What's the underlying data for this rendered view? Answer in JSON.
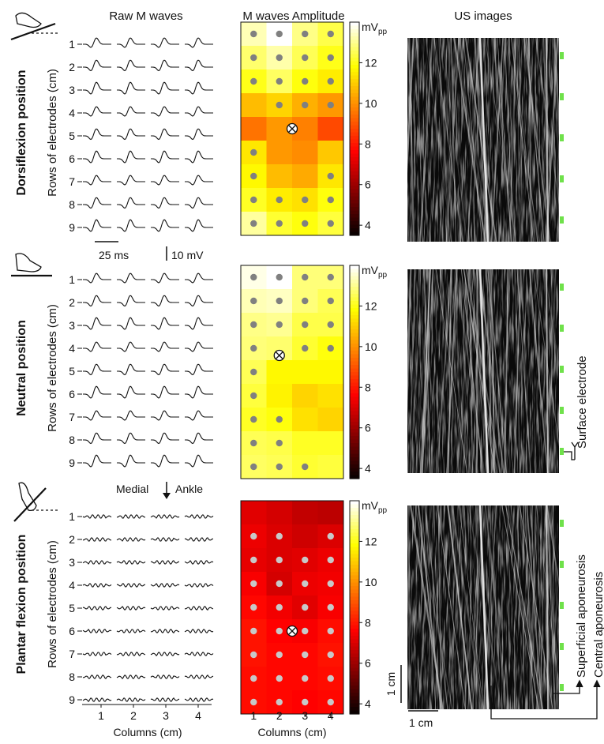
{
  "headers": {
    "raw": "Raw M waves",
    "amplitude": "M waves Amplitude",
    "us": "US images"
  },
  "panels": [
    {
      "position_label": "Dorsiflexion position",
      "rows_label": "Rows  of electrodes (cm)"
    },
    {
      "position_label": "Neutral position",
      "rows_label": "Rows  of electrodes (cm)"
    },
    {
      "position_label": "Plantar flexion position",
      "rows_label": "Rows  of electrodes (cm)"
    }
  ],
  "row_numbers": [
    "1",
    "2",
    "3",
    "4",
    "5",
    "6",
    "7",
    "8",
    "9"
  ],
  "column_numbers": [
    "1",
    "2",
    "3",
    "4"
  ],
  "columns_label": "Columns (cm)",
  "scalebars": {
    "time": "25 ms",
    "voltage": "10 mV",
    "us_vertical": "1 cm",
    "us_horizontal": "1 cm"
  },
  "orientation": {
    "medial": "Medial",
    "ankle": "Ankle"
  },
  "colorbar": {
    "unit_main": "mV",
    "unit_sub": "pp",
    "ticks": [
      "12",
      "10",
      "8",
      "6",
      "4"
    ],
    "range": [
      3.5,
      14
    ]
  },
  "annotations": {
    "surface": "Surface electrode",
    "superficial": "Superficial aponeurosis",
    "central": "Central aponeurosis"
  },
  "heatmap_values": [
    [
      [
        13.4,
        14.0,
        13.0,
        12.5
      ],
      [
        12.8,
        13.3,
        12.6,
        12.1
      ],
      [
        12.1,
        12.7,
        12.0,
        11.6
      ],
      [
        10.8,
        11.2,
        10.6,
        10.2
      ],
      [
        9.6,
        10.2,
        9.8,
        8.9
      ],
      [
        11.5,
        10.2,
        10.0,
        11.0
      ],
      [
        11.8,
        10.8,
        10.5,
        11.5
      ],
      [
        12.2,
        11.6,
        11.4,
        12.0
      ],
      [
        13.2,
        12.3,
        12.0,
        12.4
      ]
    ],
    [
      [
        13.8,
        14.0,
        12.9,
        12.9
      ],
      [
        13.4,
        13.5,
        12.9,
        12.6
      ],
      [
        13.0,
        13.1,
        12.5,
        12.5
      ],
      [
        12.9,
        12.8,
        12.3,
        12.0
      ],
      [
        12.6,
        11.8,
        11.8,
        11.8
      ],
      [
        12.4,
        11.7,
        11.2,
        11.4
      ],
      [
        12.2,
        12.0,
        11.4,
        11.2
      ],
      [
        12.6,
        12.5,
        12.2,
        12.2
      ],
      [
        12.7,
        12.6,
        12.3,
        12.4
      ]
    ],
    [
      [
        7.2,
        7.0,
        6.7,
        6.6
      ],
      [
        7.4,
        7.1,
        6.9,
        7.1
      ],
      [
        7.3,
        7.1,
        7.2,
        7.4
      ],
      [
        7.6,
        7.0,
        7.4,
        7.5
      ],
      [
        7.8,
        7.5,
        7.2,
        7.6
      ],
      [
        8.0,
        7.7,
        7.6,
        7.9
      ],
      [
        8.0,
        7.8,
        7.8,
        8.0
      ],
      [
        7.9,
        7.8,
        7.8,
        7.9
      ],
      [
        7.9,
        7.8,
        7.7,
        7.8
      ]
    ]
  ],
  "dot_masks": [
    [
      [
        1,
        1,
        1,
        1
      ],
      [
        1,
        1,
        1,
        1
      ],
      [
        1,
        1,
        1,
        1
      ],
      [
        0,
        1,
        1,
        1
      ],
      [
        0,
        0,
        0,
        0
      ],
      [
        1,
        0,
        0,
        0
      ],
      [
        1,
        0,
        0,
        1
      ],
      [
        1,
        1,
        1,
        1
      ],
      [
        1,
        1,
        1,
        1
      ]
    ],
    [
      [
        1,
        1,
        1,
        1
      ],
      [
        1,
        1,
        1,
        1
      ],
      [
        1,
        1,
        1,
        1
      ],
      [
        1,
        0,
        1,
        1
      ],
      [
        1,
        0,
        0,
        0
      ],
      [
        1,
        0,
        0,
        0
      ],
      [
        1,
        1,
        0,
        0
      ],
      [
        1,
        1,
        0,
        0
      ],
      [
        1,
        1,
        1,
        0
      ]
    ],
    [
      [
        0,
        0,
        0,
        0
      ],
      [
        1,
        1,
        0,
        1
      ],
      [
        1,
        1,
        1,
        1
      ],
      [
        1,
        1,
        1,
        1
      ],
      [
        1,
        1,
        1,
        1
      ],
      [
        1,
        1,
        1,
        1
      ],
      [
        1,
        1,
        1,
        1
      ],
      [
        1,
        1,
        1,
        1
      ],
      [
        1,
        1,
        1,
        1
      ]
    ]
  ],
  "innervation_markers": [
    {
      "row": 5,
      "col": 2.5
    },
    {
      "row": 4.3,
      "col": 2
    },
    {
      "row": 6,
      "col": 2.5
    }
  ]
}
